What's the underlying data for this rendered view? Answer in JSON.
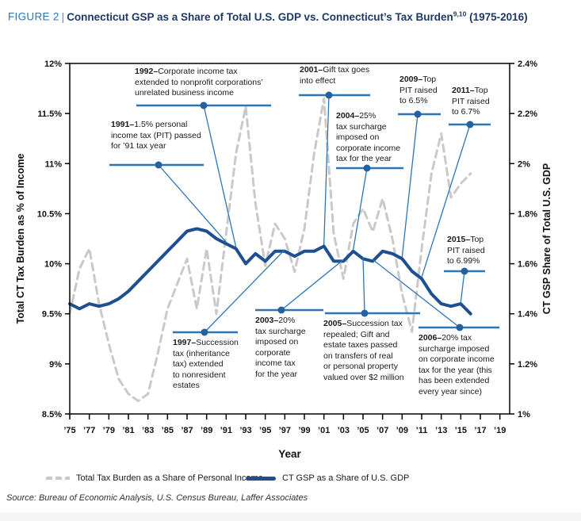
{
  "header": {
    "figure_label": "FIGURE 2",
    "separator": "|",
    "title": "Connecticut GSP as a Share of Total U.S. GDP vs. Connecticut’s Tax Burden",
    "footnote": "9,10",
    "period": "(1975-2016)"
  },
  "source": "Source: Bureau of Economic Analysis, U.S. Census Bureau, Laffer Associates",
  "legend": {
    "items": [
      {
        "label": "Total Tax Burden as a Share of Personal Income",
        "swatch": "dashed-gray"
      },
      {
        "label": "CT GSP as a Share of U.S. GDP",
        "swatch": "solid-blue"
      }
    ]
  },
  "colors": {
    "series_gray": "#c9c9c9",
    "series_blue": "#1d4f91",
    "annotation_blue": "#2e75b6",
    "annotation_dot": "#24619f",
    "axis": "#000000",
    "tick_text": "#111111"
  },
  "chart_data": {
    "type": "line",
    "title": "Connecticut GSP as a Share of Total U.S. GDP vs. Connecticut’s Tax Burden (1975-2016)",
    "x": [
      1975,
      1976,
      1977,
      1978,
      1979,
      1980,
      1981,
      1982,
      1983,
      1984,
      1985,
      1986,
      1987,
      1988,
      1989,
      1990,
      1991,
      1992,
      1993,
      1994,
      1995,
      1996,
      1997,
      1998,
      1999,
      2000,
      2001,
      2002,
      2003,
      2004,
      2005,
      2006,
      2007,
      2008,
      2009,
      2010,
      2011,
      2012,
      2013,
      2014,
      2015,
      2016
    ],
    "series": [
      {
        "name": "Total Tax Burden as a Share of Personal Income",
        "axis": "left",
        "style": "dashed",
        "color": "#c9c9c9",
        "values": [
          9.5,
          9.95,
          10.15,
          9.6,
          9.2,
          8.85,
          8.7,
          8.63,
          8.7,
          9.1,
          9.55,
          9.8,
          10.05,
          9.55,
          10.15,
          9.5,
          10.3,
          11.1,
          11.57,
          10.6,
          9.98,
          10.4,
          10.25,
          9.92,
          10.35,
          11.1,
          11.65,
          10.3,
          9.85,
          10.4,
          10.55,
          10.32,
          10.65,
          10.25,
          9.7,
          9.32,
          10.15,
          10.9,
          11.3,
          10.66,
          10.8,
          10.9
        ]
      },
      {
        "name": "CT GSP as a Share of U.S. GDP",
        "axis": "right",
        "style": "solid",
        "color": "#1d4f91",
        "values": [
          1.44,
          1.42,
          1.44,
          1.43,
          1.44,
          1.46,
          1.49,
          1.53,
          1.57,
          1.61,
          1.65,
          1.69,
          1.73,
          1.74,
          1.73,
          1.7,
          1.68,
          1.66,
          1.6,
          1.64,
          1.61,
          1.65,
          1.65,
          1.63,
          1.65,
          1.65,
          1.67,
          1.61,
          1.61,
          1.65,
          1.62,
          1.61,
          1.65,
          1.64,
          1.62,
          1.57,
          1.54,
          1.48,
          1.44,
          1.43,
          1.44,
          1.4
        ]
      }
    ],
    "left_axis": {
      "label": "Total CT Tax Burden as % of Income",
      "min": 8.5,
      "max": 12,
      "step": 0.5,
      "tick_labels": [
        "8.5%",
        "9%",
        "9.5%",
        "10%",
        "10.5%",
        "11%",
        "11.5%",
        "12%"
      ]
    },
    "right_axis": {
      "label": "CT GSP Share of Total U.S. GDP",
      "min": 1.0,
      "max": 2.4,
      "step": 0.2,
      "tick_labels": [
        "1%",
        "1.2%",
        "1.4%",
        "1.6%",
        "1.8%",
        "2%",
        "2.2%",
        "2.4%"
      ]
    },
    "x_axis": {
      "label": "Year",
      "tick_years": [
        1975,
        1977,
        1979,
        1981,
        1983,
        1985,
        1987,
        1989,
        1991,
        1993,
        1995,
        1997,
        1999,
        2001,
        2003,
        2005,
        2007,
        2009,
        2011,
        2013,
        2015,
        2017,
        2019
      ],
      "tick_labels": [
        "’75",
        "’77",
        "’79",
        "’81",
        "’83",
        "’85",
        "’87",
        "’89",
        "’91",
        "’93",
        "’95",
        "’97",
        "’99",
        "’01",
        "’03",
        "’05",
        "’07",
        "’09",
        "’11",
        "’13",
        "’15",
        "’17",
        "’19"
      ]
    },
    "annotations": [
      {
        "id": "a1991",
        "bold": "1991–",
        "lines": [
          "1.5% personal",
          "income tax (PIT) passed",
          "for ’91 tax year"
        ],
        "target_year": 1991
      },
      {
        "id": "a1992",
        "bold": "1992–",
        "lines": [
          "Corporate income tax",
          "extended to nonprofit corporations’",
          "unrelated business income"
        ],
        "target_year": 1992
      },
      {
        "id": "a1997",
        "bold": "1997–",
        "lines": [
          "Succession",
          "tax (inheritance",
          "tax) extended",
          "to nonresident",
          "estates"
        ],
        "target_year": 1997
      },
      {
        "id": "a2001",
        "bold": "2001–",
        "lines": [
          "Gift tax goes",
          "into effect"
        ],
        "target_year": 2001
      },
      {
        "id": "a2003",
        "bold": "2003–",
        "lines": [
          "20%",
          "tax surcharge",
          "imposed on",
          "corporate",
          "income tax",
          "for the year"
        ],
        "target_year": 2003
      },
      {
        "id": "a2004",
        "bold": "2004–",
        "lines": [
          "25%",
          "tax surcharge",
          "imposed on",
          "corporate income",
          "tax for the year"
        ],
        "target_year": 2004
      },
      {
        "id": "a2005",
        "bold": "2005–",
        "lines": [
          "Succession tax",
          "repealed; Gift and",
          "estate taxes passed",
          "on transfers of real",
          "or personal property",
          "valued over $2 million"
        ],
        "target_year": 2005
      },
      {
        "id": "a2006",
        "bold": "2006–",
        "lines": [
          "20% tax",
          "surcharge imposed",
          "on corporate income",
          "tax for the year (this",
          "has been extended",
          "every year since)"
        ],
        "target_year": 2006
      },
      {
        "id": "a2009",
        "bold": "2009–",
        "lines": [
          "Top",
          "PIT raised",
          "to 6.5%"
        ],
        "target_year": 2009
      },
      {
        "id": "a2011",
        "bold": "2011–",
        "lines": [
          "Top",
          "PIT raised",
          "to 6.7%"
        ],
        "target_year": 2011
      },
      {
        "id": "a2015",
        "bold": "2015–",
        "lines": [
          "Top",
          "PIT raised",
          "to 6.99%"
        ],
        "target_year": 2015
      }
    ]
  }
}
